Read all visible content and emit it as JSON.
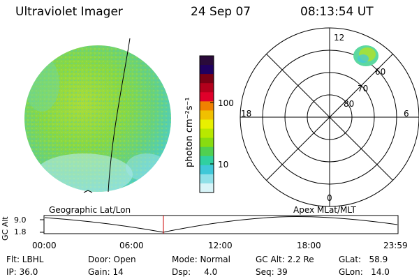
{
  "header": {
    "title": "Ultraviolet Imager",
    "date": "24 Sep 07",
    "time": "08:13:54 UT"
  },
  "colorbar": {
    "unit_label": "photon cm⁻²s⁻¹",
    "ticks": [
      "100",
      "10"
    ],
    "colors": [
      "#2a0a3a",
      "#200060",
      "#7a0014",
      "#b3001c",
      "#e0002a",
      "#f08000",
      "#f0c000",
      "#e8f000",
      "#b8e800",
      "#88dc10",
      "#50d050",
      "#30d0a0",
      "#40c8d8",
      "#90e0e8",
      "#d8f4f8"
    ]
  },
  "polar_plot": {
    "mlt_labels": {
      "top": "12",
      "left": "18",
      "right": "6",
      "bottom": "0"
    },
    "lat_labels": [
      "60",
      "70",
      "80"
    ]
  },
  "timeline": {
    "left_label": "Geographic Lat/Lon",
    "right_label": "Apex  MLat/MLT",
    "axis_title": "GC Alt",
    "y_max": "9.0",
    "y_min": "1.8",
    "time_ticks": [
      "00:00",
      "06:00",
      "12:00",
      "18:00",
      "23:59"
    ],
    "marker_color": "#cc0000"
  },
  "info": {
    "flt": "Flt: LBHL",
    "ip": "IP: 36.0",
    "door": "Door: Open",
    "gain": "Gain: 14",
    "mode": "Mode: Normal",
    "dsp": "Dsp:     4.0",
    "gc_alt": "GC Alt: 2.2 Re",
    "seq": "Seq: 39",
    "glat": "GLat:   58.9",
    "glon": "GLon:   14.0"
  },
  "image_colors": {
    "disk": "#7ed850",
    "limb": "#5cd0b0",
    "bright": "#b0e030"
  }
}
